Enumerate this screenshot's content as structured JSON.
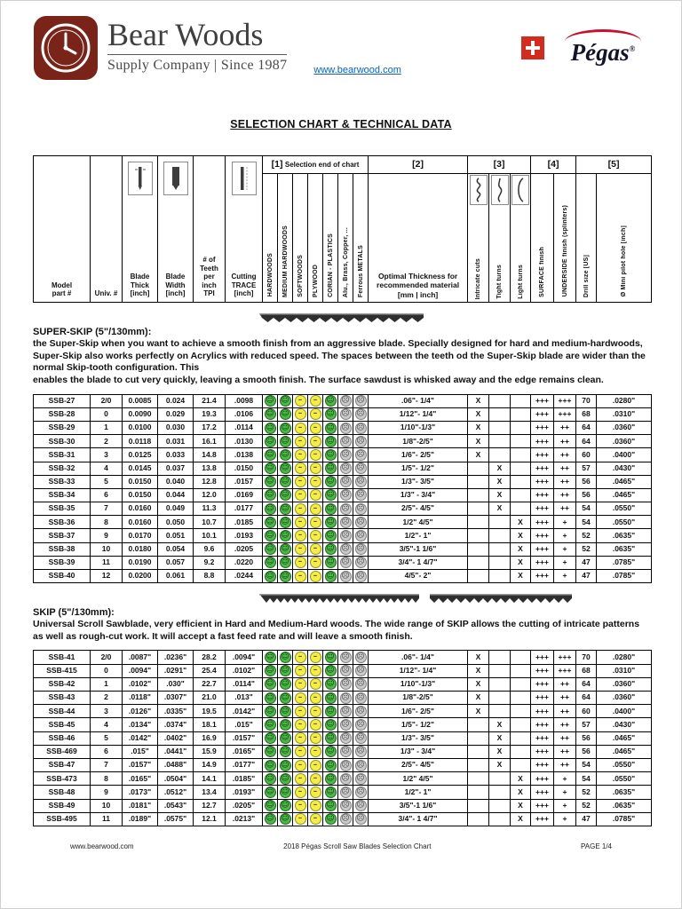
{
  "page": {
    "title": "SELECTION CHART & TECHNICAL DATA"
  },
  "header": {
    "brand": "Bear Woods",
    "tagline": "Supply Company | Since 1987",
    "website": "www.bearwood.com",
    "pegas_brand": "Pégas",
    "pegas_reg": "®"
  },
  "table_header": {
    "groups": [
      {
        "n": "[1]",
        "note": "Selection end of chart"
      },
      {
        "n": "[2]",
        "note": ""
      },
      {
        "n": "[3]",
        "note": ""
      },
      {
        "n": "[4]",
        "note": ""
      },
      {
        "n": "[5]",
        "note": ""
      }
    ],
    "columns": {
      "model": "Model\npart #",
      "univ": "Univ. #",
      "thick": "Blade\nThick\n[inch]",
      "width": "Blade\nWidth\n[inch]",
      "tpi": "# of\nTeeth\nper\ninch\nTPI",
      "trace": "Cutting\nTRACE\n[inch]",
      "materials": [
        "HARDWOODS",
        "MEDIUM HARDWOODS",
        "SOFTWOODS",
        "PLYWOOD",
        "CORIAN - PLASTICS",
        "Alu., Brass, Copper, ...",
        "Ferrous METALS"
      ],
      "optimal": "Optimal Thickness for\nrecommended material\n[mm | inch]",
      "right": [
        "Intricate cuts",
        "Tight turns",
        "Light turns",
        "SURFACE finish",
        "UNDERSIDE finish (splinters)",
        "Drill size [US]",
        "Ø Mini pilot hole [inch]"
      ]
    }
  },
  "marks": {
    "selected": "X"
  },
  "sections": [
    {
      "name": "SUPER-SKIP (5\"/130mm):",
      "description": "the Super-Skip when you want to achieve a smooth finish from an aggressive blade. Specially designed for hard and medium-hardwoods, Super-Skip also works perfectly on Acrylics with reduced speed. The spaces between the teeth od the Super-Skip blade are wider than the normal Skip-tooth configuration. This\nenables the blade to cut very quickly, leaving a smooth finish. The surface sawdust is whisked away and the edge remains clean.",
      "ratings": [
        "good",
        "good",
        "ok",
        "ok",
        "good",
        "poor",
        "poor"
      ],
      "rows": [
        [
          "SSB-27",
          "2/0",
          "0.0085",
          "0.024",
          "21.4",
          ".0098",
          ".06\"- 1/4\"",
          "intricate",
          "+++",
          "+++",
          "70",
          ".0280\""
        ],
        [
          "SSB-28",
          "0",
          "0.0090",
          "0.029",
          "19.3",
          ".0106",
          "1/12\"- 1/4\"",
          "intricate",
          "+++",
          "+++",
          "68",
          ".0310\""
        ],
        [
          "SSB-29",
          "1",
          "0.0100",
          "0.030",
          "17.2",
          ".0114",
          "1/10\"-1/3\"",
          "intricate",
          "+++",
          "++",
          "64",
          ".0360\""
        ],
        [
          "SSB-30",
          "2",
          "0.0118",
          "0.031",
          "16.1",
          ".0130",
          "1/8\"-2/5\"",
          "intricate",
          "+++",
          "++",
          "64",
          ".0360\""
        ],
        [
          "SSB-31",
          "3",
          "0.0125",
          "0.033",
          "14.8",
          ".0138",
          "1/6\"- 2/5\"",
          "intricate",
          "+++",
          "++",
          "60",
          ".0400\""
        ],
        [
          "SSB-32",
          "4",
          "0.0145",
          "0.037",
          "13.8",
          ".0150",
          "1/5\"- 1/2\"",
          "tight",
          "+++",
          "++",
          "57",
          ".0430\""
        ],
        [
          "SSB-33",
          "5",
          "0.0150",
          "0.040",
          "12.8",
          ".0157",
          "1/3\"- 3/5\"",
          "tight",
          "+++",
          "++",
          "56",
          ".0465\""
        ],
        [
          "SSB-34",
          "6",
          "0.0150",
          "0.044",
          "12.0",
          ".0169",
          "1/3\" - 3/4\"",
          "tight",
          "+++",
          "++",
          "56",
          ".0465\""
        ],
        [
          "SSB-35",
          "7",
          "0.0160",
          "0.049",
          "11.3",
          ".0177",
          "2/5\"- 4/5\"",
          "tight",
          "+++",
          "++",
          "54",
          ".0550\""
        ],
        [
          "SSB-36",
          "8",
          "0.0160",
          "0.050",
          "10.7",
          ".0185",
          "1/2\" 4/5\"",
          "light",
          "+++",
          "+",
          "54",
          ".0550\""
        ],
        [
          "SSB-37",
          "9",
          "0.0170",
          "0.051",
          "10.1",
          ".0193",
          "1/2\"- 1\"",
          "light",
          "+++",
          "+",
          "52",
          ".0635\""
        ],
        [
          "SSB-38",
          "10",
          "0.0180",
          "0.054",
          "9.6",
          ".0205",
          "3/5\"-1 1/6\"",
          "light",
          "+++",
          "+",
          "52",
          ".0635\""
        ],
        [
          "SSB-39",
          "11",
          "0.0190",
          "0.057",
          "9.2",
          ".0220",
          "3/4\"- 1 4/7\"",
          "light",
          "+++",
          "+",
          "47",
          ".0785\""
        ],
        [
          "SSB-40",
          "12",
          "0.0200",
          "0.061",
          "8.8",
          ".0244",
          "4/5\"- 2\"",
          "light",
          "+++",
          "+",
          "47",
          ".0785\""
        ]
      ]
    },
    {
      "name": "SKIP (5\"/130mm):",
      "description": "Universal Scroll Sawblade, very efficient in Hard and Medium-Hard woods. The wide range of SKIP allows the cutting of intricate patterns as well as rough-cut work. It will accept a fast feed rate and will leave a smooth finish.",
      "ratings": [
        "good",
        "good",
        "ok",
        "ok",
        "good",
        "poor",
        "poor"
      ],
      "rows": [
        [
          "SSB-41",
          "2/0",
          ".0087\"",
          ".0236\"",
          "28.2",
          ".0094\"",
          ".06\"- 1/4\"",
          "intricate",
          "+++",
          "+++",
          "70",
          ".0280\""
        ],
        [
          "SSB-415",
          "0",
          ".0094\"",
          ".0291\"",
          "25.4",
          ".0102\"",
          "1/12\"- 1/4\"",
          "intricate",
          "+++",
          "+++",
          "68",
          ".0310\""
        ],
        [
          "SSB-42",
          "1",
          ".0102\"",
          ".030\"",
          "22.7",
          ".0114\"",
          "1/10\"-1/3\"",
          "intricate",
          "+++",
          "++",
          "64",
          ".0360\""
        ],
        [
          "SSB-43",
          "2",
          ".0118\"",
          ".0307\"",
          "21.0",
          ".013\"",
          "1/8\"-2/5\"",
          "intricate",
          "+++",
          "++",
          "64",
          ".0360\""
        ],
        [
          "SSB-44",
          "3",
          ".0126\"",
          ".0335\"",
          "19.5",
          ".0142\"",
          "1/6\"- 2/5\"",
          "intricate",
          "+++",
          "++",
          "60",
          ".0400\""
        ],
        [
          "SSB-45",
          "4",
          ".0134\"",
          ".0374\"",
          "18.1",
          ".015\"",
          "1/5\"- 1/2\"",
          "tight",
          "+++",
          "++",
          "57",
          ".0430\""
        ],
        [
          "SSB-46",
          "5",
          ".0142\"",
          ".0402\"",
          "16.9",
          ".0157\"",
          "1/3\"- 3/5\"",
          "tight",
          "+++",
          "++",
          "56",
          ".0465\""
        ],
        [
          "SSB-469",
          "6",
          ".015\"",
          ".0441\"",
          "15.9",
          ".0165\"",
          "1/3\" - 3/4\"",
          "tight",
          "+++",
          "++",
          "56",
          ".0465\""
        ],
        [
          "SSB-47",
          "7",
          ".0157\"",
          ".0488\"",
          "14.9",
          ".0177\"",
          "2/5\"- 4/5\"",
          "tight",
          "+++",
          "++",
          "54",
          ".0550\""
        ],
        [
          "SSB-473",
          "8",
          ".0165\"",
          ".0504\"",
          "14.1",
          ".0185\"",
          "1/2\" 4/5\"",
          "light",
          "+++",
          "+",
          "54",
          ".0550\""
        ],
        [
          "SSB-48",
          "9",
          ".0173\"",
          ".0512\"",
          "13.4",
          ".0193\"",
          "1/2\"- 1\"",
          "light",
          "+++",
          "+",
          "52",
          ".0635\""
        ],
        [
          "SSB-49",
          "10",
          ".0181\"",
          ".0543\"",
          "12.7",
          ".0205\"",
          "3/5\"-1 1/6\"",
          "light",
          "+++",
          "+",
          "52",
          ".0635\""
        ],
        [
          "SSB-495",
          "11",
          ".0189\"",
          ".0575\"",
          "12.1",
          ".0213\"",
          "3/4\"- 1 4/7\"",
          "light",
          "+++",
          "+",
          "47",
          ".0785\""
        ]
      ]
    }
  ],
  "footer": {
    "left": "www.bearwood.com",
    "center": "2018 Pégas Scroll Saw Blades Selection Chart",
    "right": "PAGE 1/4"
  },
  "colors": {
    "logo_red": "#7a2318",
    "swiss_red": "#d52b1e",
    "pegas_red": "#c8102e",
    "link_blue": "#0563c1",
    "rating_good": "#4db848",
    "rating_ok": "#f4ee42",
    "rating_poor": "#c9c9c9"
  }
}
